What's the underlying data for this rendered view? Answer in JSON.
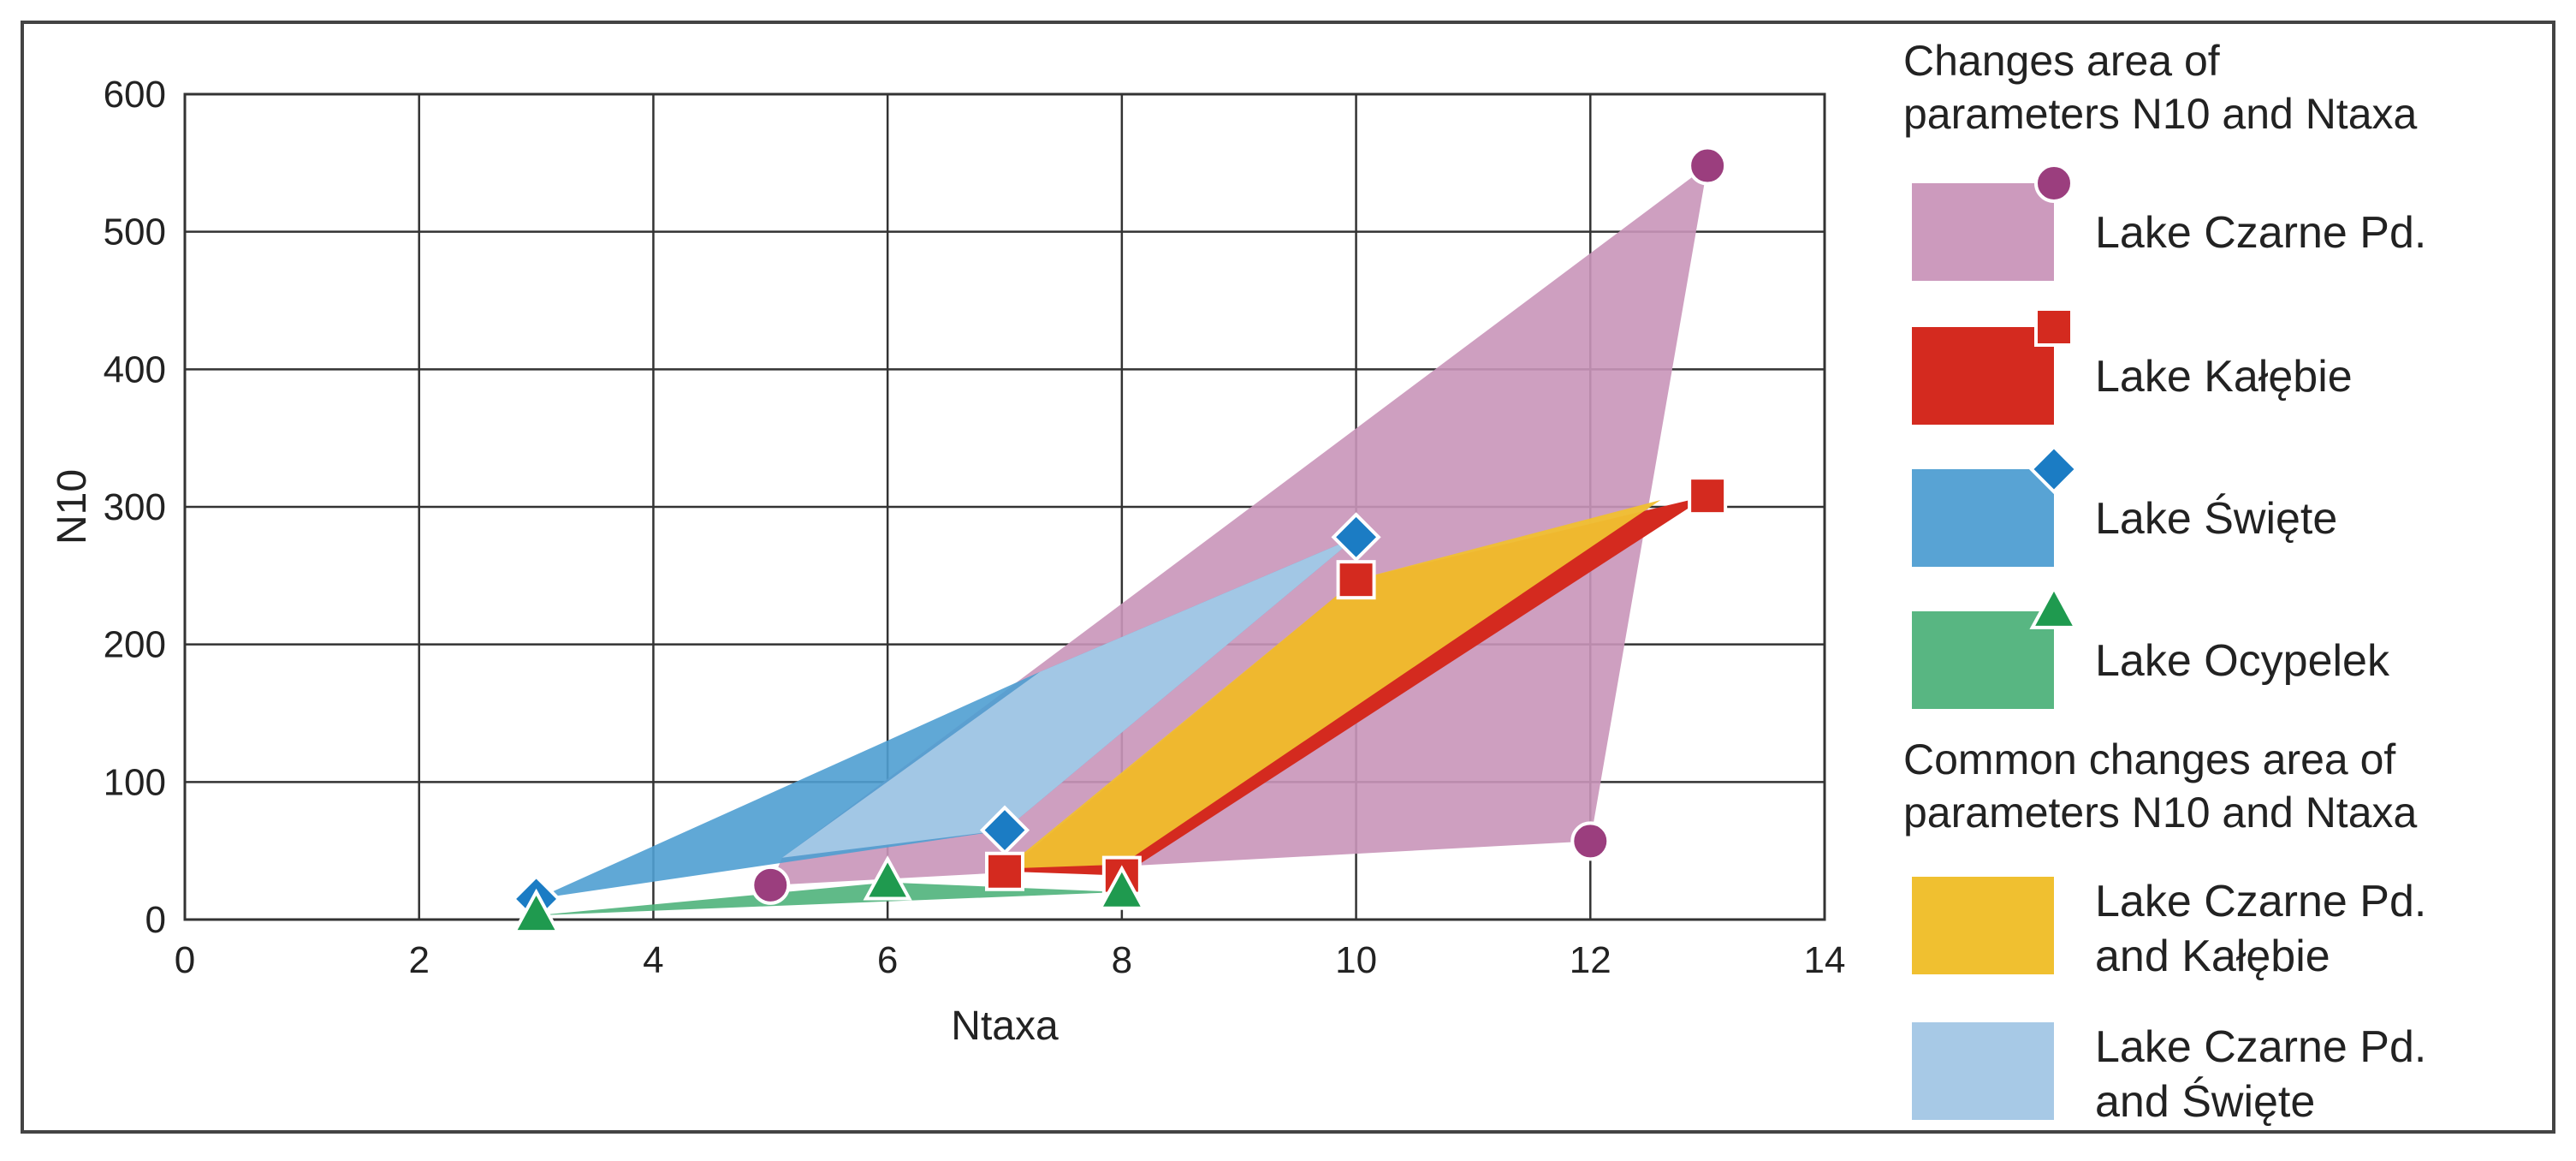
{
  "chart_data": {
    "type": "scatter",
    "xlabel": "Ntaxa",
    "ylabel": "N10",
    "xlim": [
      0,
      14
    ],
    "ylim": [
      0,
      600
    ],
    "xticks": [
      "0",
      "2",
      "4",
      "6",
      "8",
      "10",
      "12",
      "14"
    ],
    "yticks": [
      "0",
      "100",
      "200",
      "300",
      "400",
      "500",
      "600"
    ],
    "grid": true,
    "legend_position": "right",
    "series": [
      {
        "name": "Lake Czarne Pd.",
        "marker": "circle",
        "color": "#9b3e7e",
        "area_color": "#c995b9",
        "points": [
          {
            "x": 5,
            "y": 25
          },
          {
            "x": 12,
            "y": 57
          },
          {
            "x": 13,
            "y": 548
          }
        ],
        "area": [
          {
            "x": 5,
            "y": 25
          },
          {
            "x": 5.1,
            "y": 45
          },
          {
            "x": 13,
            "y": 548
          },
          {
            "x": 12,
            "y": 57
          }
        ]
      },
      {
        "name": "Lake Kałębie",
        "marker": "square",
        "color": "#d42a1f",
        "area_color": "#d42a1f",
        "points": [
          {
            "x": 7,
            "y": 35
          },
          {
            "x": 8,
            "y": 32
          },
          {
            "x": 10,
            "y": 247
          },
          {
            "x": 13,
            "y": 308
          }
        ],
        "area": [
          {
            "x": 7,
            "y": 35
          },
          {
            "x": 10,
            "y": 247
          },
          {
            "x": 13,
            "y": 308
          },
          {
            "x": 8,
            "y": 32
          }
        ]
      },
      {
        "name": "Lake Święte",
        "marker": "diamond",
        "color": "#1b7cc4",
        "area_color": "#4f9ed2",
        "points": [
          {
            "x": 3,
            "y": 15
          },
          {
            "x": 7,
            "y": 65
          },
          {
            "x": 10,
            "y": 278
          }
        ],
        "area": [
          {
            "x": 3,
            "y": 15
          },
          {
            "x": 7.3,
            "y": 180
          },
          {
            "x": 10,
            "y": 278
          },
          {
            "x": 7,
            "y": 65
          }
        ]
      },
      {
        "name": "Lake Ocypelek",
        "marker": "triangle",
        "color": "#1f9a4f",
        "area_color": "#4fb27b",
        "points": [
          {
            "x": 3,
            "y": 3
          },
          {
            "x": 6,
            "y": 27
          },
          {
            "x": 8,
            "y": 20
          }
        ],
        "area": [
          {
            "x": 3,
            "y": 3
          },
          {
            "x": 6,
            "y": 27
          },
          {
            "x": 8,
            "y": 20
          }
        ]
      }
    ],
    "common_areas": [
      {
        "name": "Lake Czarne Pd. and Kałębie",
        "label_lines": [
          "Lake Czarne Pd.",
          "and Kałębie"
        ],
        "color": "#f0c030",
        "polygon": [
          {
            "x": 7,
            "y": 37
          },
          {
            "x": 10,
            "y": 247
          },
          {
            "x": 12.6,
            "y": 305
          },
          {
            "x": 8,
            "y": 40
          }
        ]
      },
      {
        "name": "Lake Czarne Pd. and Święte",
        "label_lines": [
          "Lake Czarne Pd.",
          "and Święte"
        ],
        "color": "#a7c9e6",
        "polygon": [
          {
            "x": 5.1,
            "y": 45
          },
          {
            "x": 7.3,
            "y": 180
          },
          {
            "x": 10,
            "y": 278
          },
          {
            "x": 7,
            "y": 65
          }
        ]
      }
    ]
  },
  "legend": {
    "title_top": [
      "Changes area of",
      "parameters N10 and Ntaxa"
    ],
    "title_common": [
      "Common changes area of",
      "parameters N10 and Ntaxa"
    ]
  }
}
